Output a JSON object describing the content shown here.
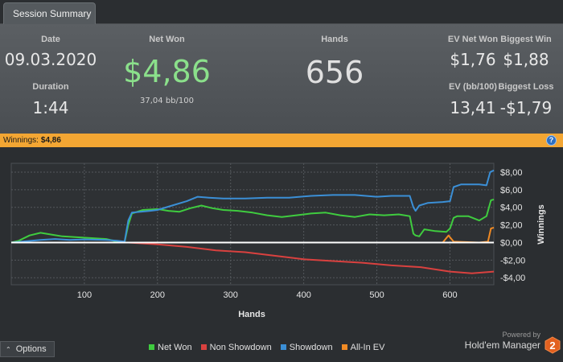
{
  "tab": {
    "label": "Session Summary"
  },
  "summary": {
    "date_label": "Date",
    "date_value": "09.03.2020",
    "duration_label": "Duration",
    "duration_value": "1:44",
    "netwon_label": "Net Won",
    "netwon_value": "$4,86",
    "netwon_sub": "37,04 bb/100",
    "hands_label": "Hands",
    "hands_value": "656",
    "ev_netwon_label": "EV Net Won",
    "ev_netwon_value": "$1,76",
    "biggest_win_label": "Biggest Win",
    "biggest_win_value": "$1,88",
    "ev_bb_label": "EV (bb/100)",
    "ev_bb_value": "13,41",
    "biggest_loss_label": "Biggest Loss",
    "biggest_loss_value": "-$1,79"
  },
  "winbar": {
    "label": "Winnings:",
    "value": "$4,86",
    "help_icon": "?"
  },
  "chart_data": {
    "type": "line",
    "xlabel": "Hands",
    "ylabel": "Winnings",
    "xlim": [
      0,
      660
    ],
    "ylim": [
      -4.8,
      9
    ],
    "x_ticks": [
      100,
      200,
      300,
      400,
      500,
      600
    ],
    "y_ticks": [
      8,
      6,
      4,
      2,
      0,
      -2,
      -4
    ],
    "y_tick_labels": [
      "$8,00",
      "$6,00",
      "$4,00",
      "$2,00",
      "$0,00",
      "-$2,00",
      "-$4,00"
    ],
    "grid": true,
    "legend_position": "bottom",
    "series": [
      {
        "name": "Net Won",
        "color": "#3fcc3f",
        "x": [
          0,
          10,
          25,
          40,
          55,
          70,
          90,
          110,
          130,
          145,
          155,
          160,
          165,
          180,
          200,
          215,
          230,
          245,
          260,
          275,
          290,
          310,
          330,
          350,
          370,
          390,
          410,
          430,
          450,
          470,
          490,
          510,
          530,
          545,
          550,
          553,
          558,
          565,
          580,
          595,
          600,
          605,
          610,
          625,
          640,
          650,
          656,
          660
        ],
        "values": [
          0,
          0.2,
          0.8,
          1.1,
          0.9,
          0.7,
          0.6,
          0.5,
          0.4,
          0.1,
          0.05,
          2.0,
          3.3,
          3.7,
          3.8,
          3.6,
          3.5,
          3.9,
          4.2,
          3.9,
          3.7,
          3.6,
          3.4,
          3.1,
          2.9,
          3.1,
          3.3,
          3.4,
          3.1,
          2.9,
          3.2,
          3.1,
          3.2,
          3.0,
          1.0,
          0.8,
          0.7,
          1.5,
          1.3,
          1.2,
          1.6,
          2.8,
          3.0,
          3.0,
          2.5,
          3.0,
          4.8,
          4.9
        ]
      },
      {
        "name": "Non Showdown",
        "color": "#d9413f",
        "x": [
          0,
          160,
          200,
          240,
          280,
          320,
          360,
          400,
          440,
          480,
          520,
          560,
          600,
          630,
          660
        ],
        "values": [
          0,
          0,
          -0.2,
          -0.5,
          -0.9,
          -1.1,
          -1.5,
          -1.9,
          -2.1,
          -2.3,
          -2.6,
          -2.8,
          -3.3,
          -3.5,
          -3.3
        ]
      },
      {
        "name": "Showdown",
        "color": "#3b8fd6",
        "x": [
          0,
          40,
          60,
          80,
          100,
          130,
          145,
          155,
          160,
          165,
          190,
          200,
          220,
          240,
          255,
          270,
          290,
          320,
          350,
          380,
          410,
          440,
          470,
          500,
          520,
          540,
          545,
          550,
          553,
          558,
          570,
          590,
          600,
          605,
          615,
          640,
          650,
          655,
          660
        ],
        "values": [
          0,
          0.3,
          0.4,
          0.3,
          0.35,
          0.3,
          0.2,
          0.1,
          2.5,
          3.4,
          3.6,
          3.7,
          4.2,
          4.7,
          5.2,
          5.1,
          5.0,
          5.0,
          5.1,
          5.1,
          5.3,
          5.4,
          5.4,
          5.2,
          5.3,
          5.3,
          5.3,
          4.0,
          3.6,
          4.2,
          4.5,
          4.6,
          4.7,
          6.3,
          6.6,
          6.6,
          6.5,
          8.0,
          8.2
        ]
      },
      {
        "name": "All-In EV",
        "color": "#f08a24",
        "x": [
          0,
          590,
          598,
          605,
          640,
          652,
          656,
          660
        ],
        "values": [
          0,
          0,
          0.8,
          0.1,
          0.0,
          0.1,
          1.6,
          1.7
        ]
      }
    ]
  },
  "footer": {
    "options_label": "Options",
    "legend": [
      {
        "name": "Net Won",
        "color": "#3fcc3f"
      },
      {
        "name": "Non Showdown",
        "color": "#d9413f"
      },
      {
        "name": "Showdown",
        "color": "#3b8fd6"
      },
      {
        "name": "All-In EV",
        "color": "#f08a24"
      }
    ],
    "powered_by": "Powered by",
    "brand_name": "Hold'em Manager",
    "logo_text": "2"
  }
}
